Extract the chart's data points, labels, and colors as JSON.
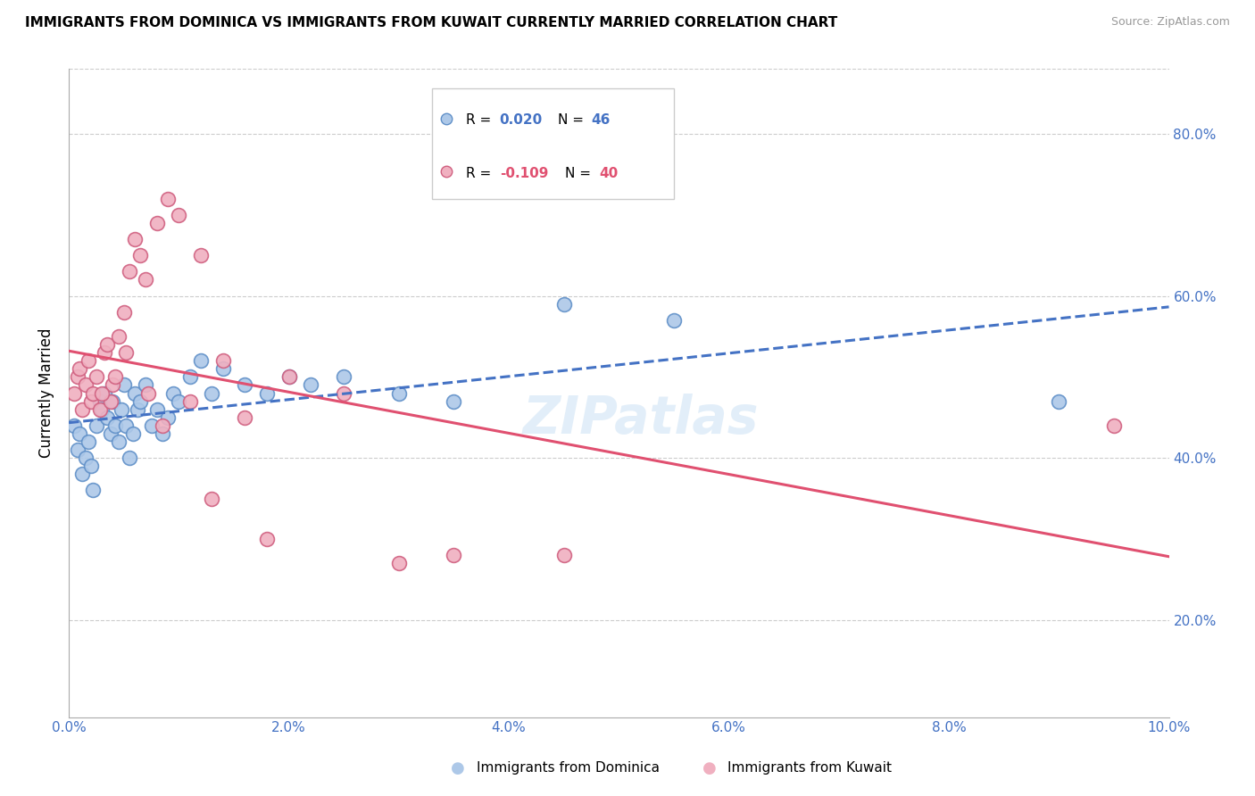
{
  "title": "IMMIGRANTS FROM DOMINICA VS IMMIGRANTS FROM KUWAIT CURRENTLY MARRIED CORRELATION CHART",
  "source": "Source: ZipAtlas.com",
  "ylabel": "Currently Married",
  "x_tick_labels": [
    "0.0%",
    "2.0%",
    "4.0%",
    "6.0%",
    "8.0%",
    "10.0%"
  ],
  "x_tick_values": [
    0.0,
    2.0,
    4.0,
    6.0,
    8.0,
    10.0
  ],
  "y_tick_labels": [
    "20.0%",
    "40.0%",
    "60.0%",
    "80.0%"
  ],
  "y_tick_values": [
    20.0,
    40.0,
    60.0,
    80.0
  ],
  "xlim": [
    0.0,
    10.0
  ],
  "ylim": [
    8.0,
    88.0
  ],
  "legend_labels_color_blue": "#4472c4",
  "legend_labels_color_pink": "#e05070",
  "dominica_color": "#adc8e8",
  "kuwait_color": "#f0b0c0",
  "dominica_edge": "#6090c8",
  "kuwait_edge": "#d06080",
  "trendline_dominica_color": "#4472c4",
  "trendline_kuwait_color": "#e05070",
  "axis_color": "#4472c4",
  "grid_color": "#cccccc",
  "watermark": "ZIPatlas",
  "dominica_x": [
    0.05,
    0.08,
    0.1,
    0.12,
    0.15,
    0.18,
    0.2,
    0.22,
    0.25,
    0.28,
    0.3,
    0.32,
    0.35,
    0.38,
    0.4,
    0.42,
    0.45,
    0.48,
    0.5,
    0.52,
    0.55,
    0.58,
    0.6,
    0.62,
    0.65,
    0.7,
    0.75,
    0.8,
    0.85,
    0.9,
    0.95,
    1.0,
    1.1,
    1.2,
    1.3,
    1.4,
    1.6,
    1.8,
    2.0,
    2.2,
    2.5,
    3.0,
    3.5,
    4.5,
    5.5,
    9.0
  ],
  "dominica_y": [
    44,
    41,
    43,
    38,
    40,
    42,
    39,
    36,
    44,
    47,
    46,
    48,
    45,
    43,
    47,
    44,
    42,
    46,
    49,
    44,
    40,
    43,
    48,
    46,
    47,
    49,
    44,
    46,
    43,
    45,
    48,
    47,
    50,
    52,
    48,
    51,
    49,
    48,
    50,
    49,
    50,
    48,
    47,
    59,
    57,
    47
  ],
  "kuwait_x": [
    0.05,
    0.08,
    0.1,
    0.12,
    0.15,
    0.18,
    0.2,
    0.22,
    0.25,
    0.28,
    0.32,
    0.35,
    0.38,
    0.4,
    0.45,
    0.5,
    0.55,
    0.6,
    0.65,
    0.7,
    0.8,
    0.9,
    1.0,
    1.2,
    1.4,
    1.6,
    2.0,
    2.5,
    3.5,
    4.5,
    0.3,
    0.42,
    0.52,
    0.72,
    0.85,
    1.1,
    1.3,
    1.8,
    3.0,
    9.5
  ],
  "kuwait_y": [
    48,
    50,
    51,
    46,
    49,
    52,
    47,
    48,
    50,
    46,
    53,
    54,
    47,
    49,
    55,
    58,
    63,
    67,
    65,
    62,
    69,
    72,
    70,
    65,
    52,
    45,
    50,
    48,
    28,
    28,
    48,
    50,
    53,
    48,
    44,
    47,
    35,
    30,
    27,
    44
  ]
}
